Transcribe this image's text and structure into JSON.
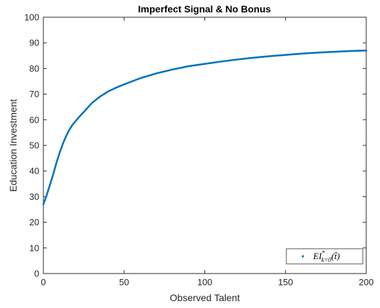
{
  "chart_data": {
    "type": "line",
    "title": "Imperfect Signal & No Bonus",
    "xlabel": "Observed Talent",
    "ylabel": "Education Investment",
    "xlim": [
      0,
      200
    ],
    "ylim": [
      0,
      100
    ],
    "xticks": [
      0,
      50,
      100,
      150,
      200
    ],
    "yticks": [
      0,
      10,
      20,
      30,
      40,
      50,
      60,
      70,
      80,
      90,
      100
    ],
    "grid": false,
    "legend_placement": "bottom-right",
    "series": [
      {
        "name": "EI*k=0(t̂)",
        "color": "#0072BD",
        "x": [
          0,
          2,
          4,
          6,
          8,
          10,
          12,
          14,
          16,
          18,
          20,
          22,
          25,
          30,
          35,
          40,
          45,
          50,
          60,
          70,
          80,
          90,
          100,
          110,
          120,
          130,
          140,
          150,
          160,
          170,
          180,
          190,
          200
        ],
        "y": [
          27,
          30.5,
          34.5,
          38.5,
          43,
          47,
          50.5,
          53.5,
          56,
          58,
          59.5,
          61,
          63,
          66.5,
          69,
          71,
          72.5,
          73.8,
          76.2,
          78.1,
          79.6,
          80.9,
          81.8,
          82.7,
          83.5,
          84.2,
          84.8,
          85.3,
          85.8,
          86.2,
          86.5,
          86.8,
          87
        ]
      }
    ],
    "legend": {
      "entries": [
        {
          "main": "EI",
          "sup": "*",
          "sub": "k=0",
          "arg": "(t̂)"
        }
      ]
    }
  }
}
